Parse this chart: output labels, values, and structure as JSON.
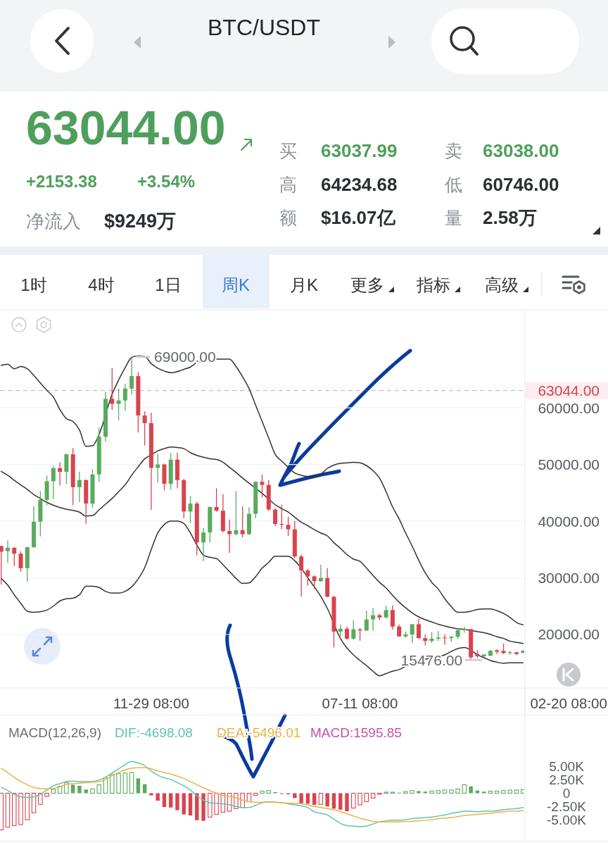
{
  "chart_data": [
    {
      "type": "other",
      "title": "BTC/USDT",
      "annotations": [
        "63044.00",
        "+2153.38",
        "+3.54%",
        "净流入",
        "$9249万",
        "买",
        "63037.99",
        "卖",
        "63038.00",
        "高",
        "64234.68",
        "低",
        "60746.00",
        "额",
        "$16.07亿",
        "量",
        "2.58万",
        "1时",
        "4时",
        "1日",
        "周K",
        "月K",
        "更多",
        "指标",
        "高级"
      ]
    },
    {
      "type": "candlestick",
      "categories": [
        null,
        null,
        null,
        null,
        null,
        null,
        null,
        null,
        null,
        null,
        null,
        null,
        null,
        null,
        null,
        null,
        null,
        null,
        null,
        null,
        null,
        null,
        null,
        "11-29 08:00",
        null,
        null,
        null,
        null,
        null,
        null,
        null,
        null,
        null,
        null,
        null,
        null,
        null,
        null,
        null,
        null,
        null,
        null,
        null,
        null,
        null,
        null,
        null,
        null,
        null,
        null,
        null,
        null,
        null,
        null,
        null,
        "07-11 08:00",
        null,
        null,
        null,
        null,
        null,
        null,
        null,
        null,
        null,
        null,
        null,
        null,
        null,
        null,
        null,
        null,
        null,
        null,
        null,
        null,
        null,
        null,
        null,
        null,
        null,
        null,
        null,
        null,
        null,
        null,
        null,
        "02-20 08:00"
      ],
      "ohlc": [
        [
          35600,
          35650,
          28800,
          34600
        ],
        [
          34700,
          36600,
          32650,
          35300
        ],
        [
          35300,
          35400,
          32100,
          34250
        ],
        [
          34250,
          34700,
          31050,
          31700
        ],
        [
          31700,
          35400,
          29300,
          35400
        ],
        [
          35400,
          42650,
          35250,
          39900
        ],
        [
          39900,
          45300,
          37300,
          43750
        ],
        [
          43750,
          48050,
          42800,
          47050
        ],
        [
          47050,
          49700,
          43900,
          49350
        ],
        [
          49350,
          50400,
          46300,
          48700
        ],
        [
          48700,
          51900,
          46550,
          51800
        ],
        [
          51800,
          52900,
          42850,
          46000
        ],
        [
          46000,
          48750,
          43350,
          47250
        ],
        [
          47250,
          47350,
          39550,
          43100
        ],
        [
          43100,
          49200,
          42400,
          48250
        ],
        [
          48250,
          56550,
          46950,
          54900
        ],
        [
          54900,
          62850,
          54000,
          61600
        ],
        [
          61600,
          67000,
          59650,
          60700
        ],
        [
          60700,
          63400,
          57800,
          61300
        ],
        [
          61300,
          64250,
          59450,
          63400
        ],
        [
          63400,
          69000,
          62350,
          65600
        ],
        [
          65600,
          66300,
          55650,
          58650
        ],
        [
          58650,
          59400,
          53350,
          57300
        ],
        [
          57300,
          59150,
          42000,
          49400
        ],
        [
          49400,
          51900,
          46800,
          50000
        ],
        [
          50000,
          50150,
          45450,
          46600
        ],
        [
          46600,
          52000,
          45600,
          50850
        ],
        [
          50850,
          52100,
          45800,
          47250
        ],
        [
          47250,
          47450,
          40500,
          41700
        ],
        [
          41700,
          44450,
          39650,
          43100
        ],
        [
          43100,
          43400,
          33950,
          36250
        ],
        [
          36250,
          38800,
          32950,
          38000
        ],
        [
          38000,
          42550,
          36250,
          42500
        ],
        [
          42500,
          45800,
          41650,
          41850
        ],
        [
          41850,
          44750,
          38000,
          38250
        ],
        [
          38250,
          40300,
          34400,
          37700
        ],
        [
          37700,
          45300,
          37500,
          38400
        ],
        [
          38400,
          42550,
          37150,
          37700
        ],
        [
          37700,
          42450,
          37550,
          41300
        ],
        [
          41300,
          47000,
          40500,
          46950
        ],
        [
          46950,
          48200,
          44200,
          46400
        ],
        [
          46400,
          47250,
          41850,
          42050
        ],
        [
          42050,
          42300,
          39150,
          39500
        ],
        [
          39500,
          42900,
          38550,
          39350
        ],
        [
          39350,
          40800,
          37400,
          38550
        ],
        [
          38550,
          40000,
          33550,
          33750
        ],
        [
          33750,
          34100,
          26700,
          31300
        ],
        [
          31300,
          31500,
          28600,
          30250
        ],
        [
          30250,
          30450,
          28050,
          29400
        ],
        [
          29400,
          32300,
          29300,
          29950
        ],
        [
          29950,
          31700,
          26600,
          26650
        ],
        [
          26650,
          26800,
          17700,
          20500
        ],
        [
          20500,
          21750,
          19600,
          21000
        ],
        [
          21000,
          21400,
          19050,
          19250
        ],
        [
          19250,
          22500,
          19050,
          20900
        ],
        [
          20900,
          21100,
          18850,
          20700
        ],
        [
          20700,
          24250,
          20600,
          22650
        ],
        [
          22650,
          24650,
          20700,
          23400
        ],
        [
          23400,
          23600,
          22550,
          23000
        ],
        [
          23000,
          25050,
          22800,
          24300
        ],
        [
          24300,
          25150,
          20850,
          21400
        ],
        [
          21400,
          21750,
          19550,
          19650
        ],
        [
          19650,
          20500,
          19450,
          20000
        ],
        [
          20000,
          21850,
          18500,
          21800
        ],
        [
          21800,
          22800,
          19250,
          19350
        ],
        [
          19350,
          20000,
          18100,
          18850
        ],
        [
          18850,
          20400,
          18500,
          19250
        ],
        [
          19250,
          20600,
          18850,
          19450
        ],
        [
          19450,
          20000,
          18200,
          19350
        ],
        [
          19350,
          19700,
          18750,
          19600
        ],
        [
          19600,
          21000,
          19200,
          20750
        ],
        [
          20750,
          21400,
          20300,
          20950
        ],
        [
          20950,
          21000,
          15476,
          15950
        ],
        [
          16550,
          17200,
          15850,
          16150
        ],
        [
          16150,
          16550,
          16000,
          16450
        ],
        [
          16250,
          17250,
          16150,
          17100
        ],
        [
          17200,
          17400,
          16550,
          16950
        ],
        [
          17100,
          18350,
          16550,
          16700
        ],
        [
          16700,
          17100,
          16450,
          16850
        ],
        [
          16850,
          16950,
          16350,
          16550
        ],
        [
          16750,
          17250,
          16700,
          17100
        ],
        null,
        null,
        null,
        null,
        null,
        null,
        null
      ],
      "colors": [
        "#d9434e",
        "#5aaa5e",
        "#d9434e",
        "#d9434e",
        "#5aaa5e",
        "#5aaa5e",
        "#5aaa5e",
        "#5aaa5e",
        "#5aaa5e",
        "#d9434e",
        "#5aaa5e",
        "#d9434e",
        "#5aaa5e",
        "#d9434e",
        "#5aaa5e",
        "#5aaa5e",
        "#5aaa5e",
        "#d9434e",
        "#5aaa5e",
        "#5aaa5e",
        "#5aaa5e",
        "#d9434e",
        "#d9434e",
        "#d9434e",
        "#5aaa5e",
        "#d9434e",
        "#5aaa5e",
        "#d9434e",
        "#d9434e",
        "#5aaa5e",
        "#d9434e",
        "#5aaa5e",
        "#5aaa5e",
        "#d9434e",
        "#d9434e",
        "#d9434e",
        "#5aaa5e",
        "#d9434e",
        "#5aaa5e",
        "#5aaa5e",
        "#d9434e",
        "#d9434e",
        "#d9434e",
        "#d9434e",
        "#d9434e",
        "#d9434e",
        "#d9434e",
        "#d9434e",
        "#d9434e",
        "#5aaa5e",
        "#d9434e",
        "#d9434e",
        "#5aaa5e",
        "#d9434e",
        "#5aaa5e",
        "#d9434e",
        "#5aaa5e",
        "#5aaa5e",
        "#d9434e",
        "#5aaa5e",
        "#d9434e",
        "#d9434e",
        "#5aaa5e",
        "#5aaa5e",
        "#d9434e",
        "#d9434e",
        "#5aaa5e",
        "#5aaa5e",
        "#d9434e",
        "#5aaa5e",
        "#5aaa5e",
        "#5aaa5e",
        "#d9434e",
        "#d9434e",
        "#5aaa5e",
        "#5aaa5e",
        "#d9434e",
        "#d9434e",
        "#5aaa5e",
        "#d9434e",
        "#5aaa5e",
        null,
        null,
        null,
        null,
        null,
        null,
        null
      ],
      "series": [
        {
          "type": "line",
          "color": "#333333",
          "values": [
            67500,
            67700,
            66900,
            67300,
            66900,
            65700,
            64400,
            63100,
            61900,
            59700,
            58100,
            57600,
            56100,
            53200,
            53300,
            55300,
            null,
            62400,
            64900,
            67100,
            68900,
            69200,
            69100,
            67800,
            67000,
            66500,
            66200,
            66400,
            66800,
            67200,
            68000,
            68200,
            68400,
            68600,
            68600,
            68600,
            67300,
            65500,
            63400,
            60500,
            57600,
            54700,
            51800,
            50600,
            49500,
            48500,
            48100,
            47900,
            47900,
            48300,
            49300,
            49900,
            50200,
            50300,
            50400,
            50300,
            49800,
            48900,
            47600,
            45200,
            42500,
            40400,
            37900,
            35600,
            33100,
            30900,
            29200,
            28000,
            26300,
            24900,
            23900,
            23900,
            24100,
            24400,
            24500,
            24500,
            24200,
            23700,
            23000,
            22100,
            21700,
            null,
            null,
            null,
            null,
            null,
            null,
            null
          ]
        },
        {
          "type": "line",
          "color": "#333333",
          "values": [
            48800,
            48100,
            47200,
            46400,
            45600,
            44700,
            44000,
            43300,
            42800,
            42400,
            42100,
            41900,
            41600,
            40900,
            41000,
            42000,
            43000,
            44000,
            45200,
            46400,
            48100,
            49600,
            51000,
            51700,
            52400,
            52800,
            53100,
            53000,
            52800,
            52100,
            51600,
            51300,
            51000,
            50900,
            50400,
            49500,
            48600,
            47600,
            46700,
            45800,
            44900,
            43900,
            42900,
            42200,
            41600,
            40700,
            39800,
            39200,
            38500,
            37900,
            37400,
            36200,
            35200,
            34100,
            33300,
            32900,
            31700,
            30400,
            29200,
            28200,
            26900,
            25700,
            24700,
            23800,
            23100,
            22600,
            22200,
            21800,
            21500,
            21200,
            21000,
            20900,
            20700,
            20500,
            20300,
            20000,
            19600,
            19300,
            18800,
            18600,
            18400,
            null,
            null,
            null,
            null,
            null,
            null,
            null
          ]
        },
        {
          "type": "line",
          "color": "#333333",
          "values": [
            29900,
            28700,
            27000,
            25500,
            24100,
            23900,
            24000,
            24300,
            25000,
            25900,
            26300,
            26400,
            27000,
            28500,
            28500,
            28300,
            27600,
            27300,
            27300,
            27600,
            28400,
            29800,
            31800,
            35000,
            37900,
            39400,
            40000,
            40000,
            39600,
            37900,
            35800,
            34000,
            33600,
            33400,
            32300,
            31100,
            29900,
            29000,
            29100,
            30200,
            31700,
            32700,
            33800,
            33800,
            33800,
            33000,
            31700,
            30000,
            28400,
            26700,
            24600,
            null,
            19300,
            17600,
            16400,
            15400,
            14500,
            13500,
            12700,
            13100,
            13500,
            13800,
            14400,
            14900,
            15300,
            15600,
            15900,
            16100,
            16400,
            17000,
            17500,
            17700,
            17200,
            16400,
            15900,
            15400,
            15100,
            14900,
            15000,
            15000,
            15000,
            null,
            null,
            null,
            null,
            null,
            null,
            null
          ]
        }
      ],
      "ylim": [
        10550,
        77300
      ],
      "yticks": [
        {
          "value": 20000,
          "label": "20000.00"
        },
        {
          "value": 30000,
          "label": "30000.00"
        },
        {
          "value": 40000,
          "label": "40000.00"
        },
        {
          "value": 50000,
          "label": "50000.00"
        },
        {
          "value": 60000,
          "label": "60000.00"
        }
      ],
      "grid": "y",
      "ref_lines": [
        {
          "axis": "y",
          "value": 63044,
          "label": "63044.00",
          "color": "#d9434e",
          "line_style": "dashed"
        }
      ],
      "annotations": [
        "69000.00",
        "15476.00"
      ]
    },
    {
      "type": "bar",
      "title": "MACD(12,26,9)",
      "categories": [
        null,
        null,
        null,
        null,
        null,
        null,
        null,
        null,
        null,
        null,
        null,
        null,
        null,
        null,
        null,
        null,
        null,
        null,
        null,
        null,
        null,
        null,
        null,
        null,
        null,
        null,
        null,
        null,
        null,
        null,
        null,
        null,
        null,
        null,
        null,
        null,
        null,
        null,
        null,
        null,
        null,
        null,
        null,
        null,
        null,
        null,
        null,
        null,
        null,
        null,
        null,
        null,
        null,
        null,
        null,
        null,
        null,
        null,
        null,
        null,
        null,
        null,
        null,
        null,
        null,
        null,
        null,
        null,
        null,
        null,
        null,
        null,
        null,
        null,
        null,
        null,
        null,
        null,
        null,
        null,
        null,
        null,
        null,
        null,
        null,
        null,
        null,
        null
      ],
      "series": [
        {
          "type": "bar",
          "colors": [
            "#d9434e",
            "#d9434e",
            "#d9434e",
            "#d9434e",
            "#d9434e",
            "#d9434e",
            "#d9434e",
            "#d9434e",
            "#5aaa5e",
            "#5aaa5e",
            "#5aaa5e",
            "#5aaa5e",
            "#5aaa5e",
            "#5aaa5e",
            "#5aaa5e",
            "#5aaa5e",
            "#5aaa5e",
            "#5aaa5e",
            "#5aaa5e",
            "#5aaa5e",
            "#5aaa5e",
            "#5aaa5e",
            "#5aaa5e",
            "#d9434e",
            "#d9434e",
            "#d9434e",
            "#d9434e",
            "#d9434e",
            "#d9434e",
            "#d9434e",
            "#d9434e",
            "#d9434e",
            "#d9434e",
            "#d9434e",
            "#d9434e",
            "#d9434e",
            "#d9434e",
            "#d9434e",
            "#d9434e",
            "#d9434e",
            "#5aaa5e",
            "#5aaa5e",
            "#5aaa5e",
            "#d9434e",
            "#d9434e",
            "#d9434e",
            "#d9434e",
            "#d9434e",
            "#d9434e",
            "#d9434e",
            "#d9434e",
            "#d9434e",
            "#d9434e",
            "#d9434e",
            "#d9434e",
            "#d9434e",
            "#d9434e",
            "#d9434e",
            "#d9434e",
            "#5aaa5e",
            "#5aaa5e",
            "#5aaa5e",
            "#5aaa5e",
            "#5aaa5e",
            "#5aaa5e",
            "#5aaa5e",
            "#5aaa5e",
            "#5aaa5e",
            "#5aaa5e",
            "#5aaa5e",
            "#5aaa5e",
            "#5aaa5e",
            "#5aaa5e",
            "#5aaa5e",
            "#5aaa5e",
            "#5aaa5e",
            "#5aaa5e",
            "#5aaa5e",
            "#5aaa5e",
            "#5aaa5e",
            "#5aaa5e",
            null,
            null,
            null,
            null,
            null,
            null,
            null
          ],
          "values": [
            -6900,
            -6400,
            -6100,
            -5900,
            -5000,
            -3700,
            -2100,
            -600,
            700,
            1300,
            2000,
            1600,
            1400,
            700,
            800,
            1600,
            2900,
            3500,
            3700,
            3800,
            3900,
            2800,
            1700,
            -400,
            -1400,
            -2600,
            -2700,
            -3200,
            -4000,
            -4200,
            -5100,
            -5200,
            -4500,
            -4000,
            -3600,
            -3400,
            -2900,
            -2700,
            -1600,
            -400,
            400,
            500,
            200,
            -100,
            -200,
            -900,
            -1900,
            -2000,
            -2200,
            -2100,
            -2500,
            -2900,
            -3100,
            -3400,
            -2800,
            -2200,
            -1600,
            -900,
            -200,
            200,
            200,
            100,
            300,
            500,
            400,
            300,
            400,
            500,
            600,
            600,
            800,
            1600,
            1300,
            500,
            300,
            400,
            400,
            500,
            600,
            600,
            700,
            null,
            null,
            null,
            null,
            null,
            null,
            null
          ]
        },
        {
          "type": "line",
          "name": "DIF:-4698.08",
          "color": "#5ec4b0",
          "values": [
            1100,
            500,
            -200,
            -700,
            -800,
            -700,
            -200,
            600,
            1400,
            1800,
            2200,
            2300,
            2200,
            2200,
            2200,
            2500,
            3000,
            3800,
            4600,
            5400,
            6000,
            5700,
            5200,
            4200,
            3400,
            2900,
            2600,
            2000,
            1400,
            600,
            -500,
            -1300,
            -1800,
            -1900,
            -2000,
            -2200,
            -2500,
            -2700,
            -2700,
            -2300,
            -1800,
            -1600,
            -1700,
            -1800,
            -2000,
            -2200,
            -2400,
            -2700,
            -3500,
            -3800,
            -4100,
            -4900,
            -5700,
            -6100,
            -6200,
            -6300,
            -6200,
            -5800,
            -5400,
            -5200,
            -5100,
            -5100,
            -5000,
            -4800,
            -4700,
            -4600,
            -4500,
            -4300,
            -4100,
            -3800,
            -3600,
            -3400,
            -3400,
            -3500,
            -3400,
            -3400,
            -3300,
            -3100,
            -3000,
            -2900,
            -2700,
            null,
            null,
            null,
            null,
            null,
            null,
            null
          ]
        },
        {
          "type": "line",
          "name": "DEA:-5496.01",
          "color": "#e8b343",
          "values": [
            4700,
            3900,
            3000,
            2200,
            1600,
            1100,
            900,
            800,
            900,
            1200,
            1700,
            1800,
            1900,
            2000,
            2100,
            2200,
            2600,
            3300,
            3900,
            4400,
            4700,
            4800,
            4800,
            4600,
            4200,
            3900,
            3600,
            3200,
            2800,
            2200,
            1600,
            1000,
            500,
            0,
            -400,
            -600,
            -900,
            -1300,
            -1600,
            -1700,
            -1700,
            -1700,
            -1700,
            -1800,
            -1900,
            -1900,
            -2000,
            -2200,
            -2500,
            -2700,
            -2900,
            -3100,
            -3500,
            -3900,
            -4300,
            -4700,
            -5000,
            -5300,
            -5400,
            -5400,
            -5400,
            -5400,
            -5300,
            -5300,
            -5200,
            -5100,
            -5000,
            -4800,
            -4700,
            -4600,
            -4400,
            -4200,
            -4100,
            -4000,
            -3900,
            -3800,
            -3600,
            -3500,
            -3400,
            -3400,
            -3200,
            null,
            null,
            null,
            null,
            null,
            null,
            null
          ]
        }
      ],
      "annotations": [
        "MACD:1595.85"
      ],
      "ylim": [
        -9100,
        14800
      ],
      "yticks": [
        {
          "value": 5000,
          "label": "5.00K"
        },
        {
          "value": 2500,
          "label": "2.50K"
        },
        0,
        {
          "value": -2500,
          "label": "-2.50K"
        },
        {
          "value": -5000,
          "label": "-5.00K"
        }
      ],
      "tick_labels": "y",
      "legend": "top left"
    }
  ]
}
